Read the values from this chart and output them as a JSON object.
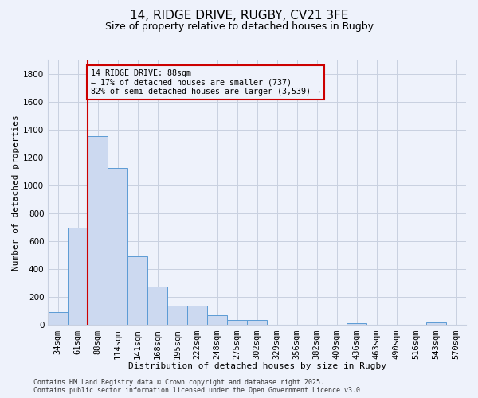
{
  "title_line1": "14, RIDGE DRIVE, RUGBY, CV21 3FE",
  "title_line2": "Size of property relative to detached houses in Rugby",
  "xlabel": "Distribution of detached houses by size in Rugby",
  "ylabel": "Number of detached properties",
  "bar_color": "#ccd9f0",
  "bar_edge_color": "#5b9bd5",
  "background_color": "#eef2fb",
  "grid_color": "#c8d0e0",
  "vline_color": "#cc0000",
  "vline_x_index": 2,
  "annotation_text": "14 RIDGE DRIVE: 88sqm\n← 17% of detached houses are smaller (737)\n82% of semi-detached houses are larger (3,539) →",
  "annotation_box_edgecolor": "#cc0000",
  "categories": [
    "34sqm",
    "61sqm",
    "88sqm",
    "114sqm",
    "141sqm",
    "168sqm",
    "195sqm",
    "222sqm",
    "248sqm",
    "275sqm",
    "302sqm",
    "329sqm",
    "356sqm",
    "382sqm",
    "409sqm",
    "436sqm",
    "463sqm",
    "490sqm",
    "516sqm",
    "543sqm",
    "570sqm"
  ],
  "values": [
    95,
    700,
    1355,
    1125,
    490,
    275,
    140,
    140,
    70,
    35,
    35,
    0,
    0,
    0,
    0,
    15,
    0,
    0,
    0,
    20,
    0
  ],
  "ylim": [
    0,
    1900
  ],
  "yticks": [
    0,
    200,
    400,
    600,
    800,
    1000,
    1200,
    1400,
    1600,
    1800
  ],
  "footer_line1": "Contains HM Land Registry data © Crown copyright and database right 2025.",
  "footer_line2": "Contains public sector information licensed under the Open Government Licence v3.0.",
  "title_fontsize": 11,
  "subtitle_fontsize": 9,
  "ylabel_fontsize": 8,
  "xlabel_fontsize": 8,
  "tick_fontsize": 7.5,
  "footer_fontsize": 6
}
